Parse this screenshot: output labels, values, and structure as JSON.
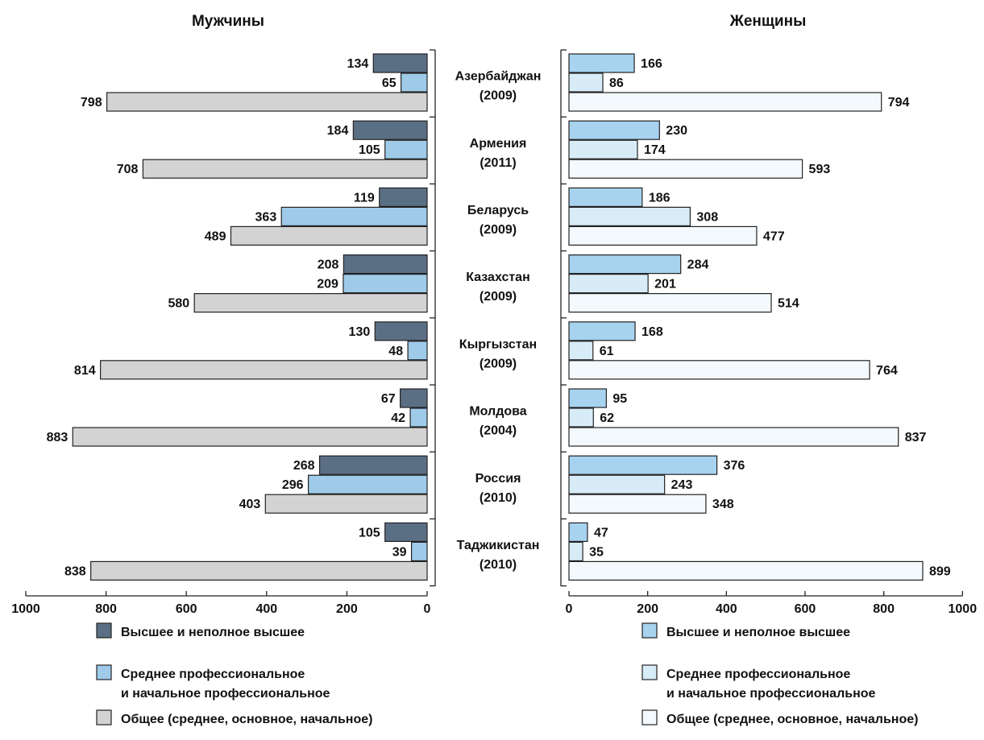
{
  "chart_data": [
    {
      "type": "bar",
      "orientation": "horizontal",
      "title": "Мужчины",
      "direction": "reversed",
      "xlim": [
        1000,
        0
      ],
      "xticks": [
        "1000",
        "800",
        "600",
        "400",
        "200",
        "0"
      ],
      "categories": [
        "Азербайджан (2009)",
        "Армения (2011)",
        "Беларусь (2009)",
        "Казахстан (2009)",
        "Кыргызстан (2009)",
        "Молдова (2004)",
        "Россия (2010)",
        "Таджикистан (2010)"
      ],
      "series": [
        {
          "name": "Высшее и неполное высшее",
          "color": "#5b6f84",
          "values": [
            134,
            184,
            119,
            208,
            130,
            67,
            268,
            105
          ]
        },
        {
          "name": "Среднее профессиональное и начальное профессиональное",
          "color": "#9fcbe9",
          "values": [
            65,
            105,
            363,
            209,
            48,
            42,
            296,
            39
          ]
        },
        {
          "name": "Общее (среднее, основное, начальное)",
          "color": "#d3d3d3",
          "values": [
            798,
            708,
            489,
            580,
            814,
            883,
            403,
            838
          ]
        }
      ],
      "data_labels": [
        [
          "134",
          "65",
          "798"
        ],
        [
          "184",
          "105",
          "708"
        ],
        [
          "119",
          "363",
          "489"
        ],
        [
          "208",
          "209",
          "580"
        ],
        [
          "130",
          "48",
          "814"
        ],
        [
          "67",
          "42",
          "883"
        ],
        [
          "268",
          "296",
          "403"
        ],
        [
          "105",
          "39",
          "838"
        ]
      ]
    },
    {
      "type": "bar",
      "orientation": "horizontal",
      "title": "Женщины",
      "direction": "normal",
      "xlim": [
        0,
        1000
      ],
      "xticks": [
        "0",
        "200",
        "400",
        "600",
        "800",
        "1000"
      ],
      "categories": [
        "Азербайджан (2009)",
        "Армения (2011)",
        "Беларусь (2009)",
        "Казахстан (2009)",
        "Кыргызстан (2009)",
        "Молдова (2004)",
        "Россия (2010)",
        "Таджикистан (2010)"
      ],
      "series": [
        {
          "name": "Высшее и неполное высшее",
          "color": "#a8d3ef",
          "values": [
            166,
            230,
            186,
            284,
            168,
            95,
            376,
            47
          ]
        },
        {
          "name": "Среднее профессиональное и начальное профессиональное",
          "color": "#d8ecf8",
          "values": [
            86,
            174,
            308,
            201,
            61,
            62,
            243,
            35
          ]
        },
        {
          "name": "Общее (среднее, основное, начальное)",
          "color": "#f3f9fd",
          "values": [
            794,
            593,
            477,
            514,
            764,
            837,
            348,
            899
          ]
        }
      ],
      "data_labels": [
        [
          "166",
          "86",
          "794"
        ],
        [
          "230",
          "174",
          "593"
        ],
        [
          "186",
          "308",
          "477"
        ],
        [
          "284",
          "201",
          "514"
        ],
        [
          "168",
          "61",
          "764"
        ],
        [
          "95",
          "62",
          "837"
        ],
        [
          "376",
          "243",
          "348"
        ],
        [
          "47",
          "35",
          "899"
        ]
      ]
    }
  ],
  "category_labels": [
    {
      "name": "Азербайджан",
      "year": "(2009)"
    },
    {
      "name": "Армения",
      "year": "(2011)"
    },
    {
      "name": "Беларусь",
      "year": "(2009)"
    },
    {
      "name": "Казахстан",
      "year": "(2009)"
    },
    {
      "name": "Кыргызстан",
      "year": "(2009)"
    },
    {
      "name": "Молдова",
      "year": "(2004)"
    },
    {
      "name": "Россия",
      "year": "(2010)"
    },
    {
      "name": "Таджикистан",
      "year": "(2010)"
    }
  ],
  "legends": [
    {
      "items": [
        {
          "lines": [
            "Высшее и неполное высшее"
          ],
          "color": "#5b6f84"
        },
        {
          "lines": [
            "Среднее профессиональное",
            "и начальное профессиональное"
          ],
          "color": "#9fcbe9"
        },
        {
          "lines": [
            "Общее (среднее, основное, начальное)"
          ],
          "color": "#d3d3d3"
        }
      ]
    },
    {
      "items": [
        {
          "lines": [
            "Высшее и неполное высшее"
          ],
          "color": "#a8d3ef"
        },
        {
          "lines": [
            "Среднее профессиональное",
            "и начальное профессиональное"
          ],
          "color": "#d8ecf8"
        },
        {
          "lines": [
            "Общее (среднее, основное, начальное)"
          ],
          "color": "#f3f9fd"
        }
      ]
    }
  ]
}
